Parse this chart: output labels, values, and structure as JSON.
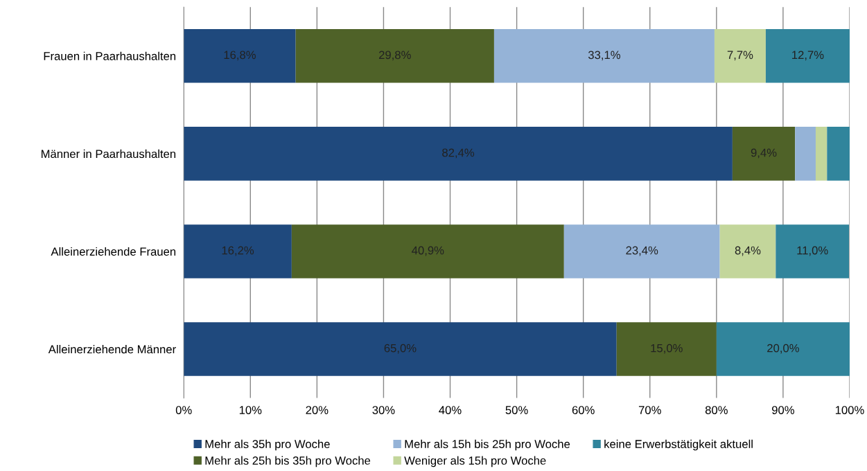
{
  "chart_data": {
    "type": "bar",
    "orientation": "horizontal",
    "stacked": true,
    "categories": [
      "Frauen in Paarhaushalten",
      "Männer in Paarhaushalten",
      "Alleinerziehende Frauen",
      "Alleinerziehende Männer"
    ],
    "series": [
      {
        "name": "Mehr als 35h pro Woche",
        "color": "#1f497d",
        "values": [
          16.8,
          82.4,
          16.2,
          65.0
        ],
        "value_labels": [
          "16,8%",
          "82,4%",
          "16,2%",
          "65,0%"
        ]
      },
      {
        "name": "Mehr als 25h bis 35h pro Woche",
        "color": "#4f6228",
        "values": [
          29.8,
          9.4,
          40.9,
          15.0
        ],
        "value_labels": [
          "29,8%",
          "9,4%",
          "40,9%",
          "15,0%"
        ]
      },
      {
        "name": "Mehr als 15h bis 25h pro Woche",
        "color": "#95b3d7",
        "values": [
          33.1,
          3.1,
          23.4,
          0
        ],
        "value_labels": [
          "33,1%",
          null,
          "23,4%",
          null
        ]
      },
      {
        "name": "Weniger als 15h pro Woche",
        "color": "#c3d69b",
        "values": [
          7.7,
          1.7,
          8.4,
          0
        ],
        "value_labels": [
          "7,7%",
          null,
          "8,4%",
          null
        ]
      },
      {
        "name": "keine Erwerbstätigkeit aktuell",
        "color": "#31859c",
        "values": [
          12.7,
          3.4,
          11.0,
          20.0
        ],
        "value_labels": [
          "12,7%",
          null,
          "11,0%",
          "20,0%"
        ]
      }
    ],
    "xlim": [
      0,
      100
    ],
    "xticks": [
      {
        "value": 0,
        "label": "0%"
      },
      {
        "value": 10,
        "label": "10%"
      },
      {
        "value": 20,
        "label": "20%"
      },
      {
        "value": 30,
        "label": "30%"
      },
      {
        "value": 40,
        "label": "40%"
      },
      {
        "value": 50,
        "label": "50%"
      },
      {
        "value": 60,
        "label": "60%"
      },
      {
        "value": 70,
        "label": "70%"
      },
      {
        "value": 80,
        "label": "80%"
      },
      {
        "value": 90,
        "label": "90%"
      },
      {
        "value": 100,
        "label": "100%"
      }
    ],
    "grid": "x",
    "legend": "bottom"
  }
}
